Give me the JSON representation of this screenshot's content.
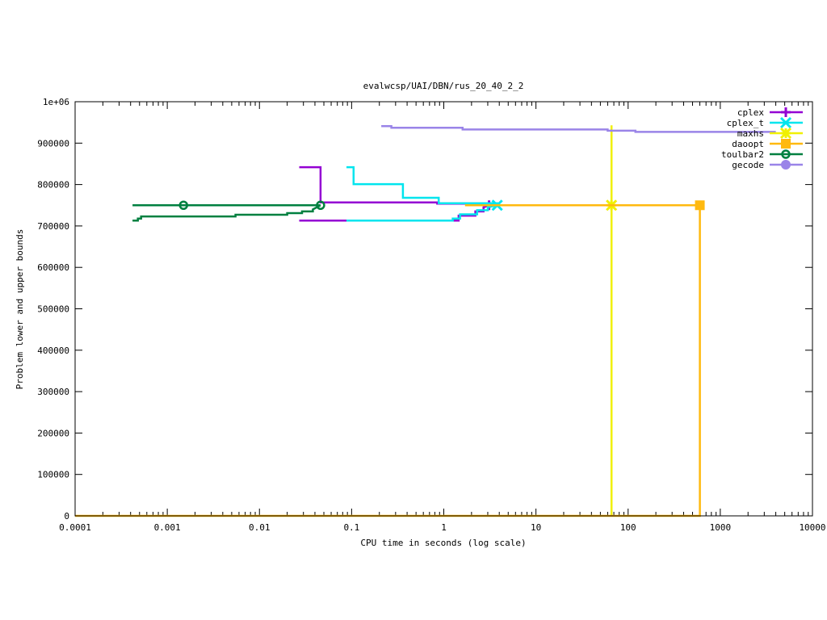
{
  "chart_data": {
    "type": "line",
    "title": "evalwcsp/UAI/DBN/rus_20_40_2_2",
    "xlabel": "CPU time in seconds (log scale)",
    "ylabel": "Problem lower and upper bounds",
    "xscale": "log",
    "xlim": [
      0.0001,
      10000
    ],
    "ylim": [
      0,
      1000000
    ],
    "x_ticks": [
      0.0001,
      0.001,
      0.01,
      0.1,
      1,
      10,
      100,
      1000,
      10000
    ],
    "x_tick_labels": [
      "0.0001",
      "0.001",
      "0.01",
      "0.1",
      "1",
      "10",
      "100",
      "1000",
      "10000"
    ],
    "y_ticks": [
      0,
      100000,
      200000,
      300000,
      400000,
      500000,
      600000,
      700000,
      800000,
      900000,
      1000000
    ],
    "y_tick_labels": [
      "0",
      "100000",
      "200000",
      "300000",
      "400000",
      "500000",
      "600000",
      "700000",
      "800000",
      "900000",
      "1e+06"
    ],
    "grid": false,
    "legend_position": "top-right",
    "series": [
      {
        "name": "cplex",
        "color": "#9400d3",
        "marker": "plus",
        "lines": [
          [
            [
              0.027,
              842000
            ],
            [
              0.046,
              842000
            ],
            [
              0.046,
              757000
            ],
            [
              0.85,
              757000
            ],
            [
              0.85,
              754000
            ],
            [
              2.6,
              754000
            ],
            [
              2.6,
              750000
            ],
            [
              3.1,
              750000
            ]
          ],
          [
            [
              0.027,
              713000
            ],
            [
              0.085,
              713000
            ],
            [
              0.085,
              713000
            ],
            [
              1.45,
              713000
            ],
            [
              1.45,
              725000
            ],
            [
              2.2,
              725000
            ],
            [
              2.2,
              735000
            ],
            [
              2.7,
              735000
            ],
            [
              2.7,
              745000
            ],
            [
              3.1,
              750000
            ]
          ]
        ],
        "markers": [
          [
            3.1,
            750000
          ]
        ]
      },
      {
        "name": "cplex_t",
        "color": "#00e5ee",
        "marker": "x",
        "lines": [
          [
            [
              0.088,
              842000
            ],
            [
              0.105,
              842000
            ],
            [
              0.105,
              801000
            ],
            [
              0.36,
              801000
            ],
            [
              0.36,
              768000
            ],
            [
              0.88,
              768000
            ],
            [
              0.88,
              755000
            ],
            [
              3.8,
              755000
            ],
            [
              3.8,
              750000
            ]
          ],
          [
            [
              0.088,
              713000
            ],
            [
              1.25,
              713000
            ],
            [
              1.25,
              718000
            ],
            [
              1.5,
              718000
            ],
            [
              1.5,
              728000
            ],
            [
              2.3,
              728000
            ],
            [
              2.3,
              738000
            ],
            [
              3.0,
              738000
            ],
            [
              3.0,
              745000
            ],
            [
              3.8,
              750000
            ]
          ]
        ],
        "markers": [
          [
            3.8,
            750000
          ]
        ]
      },
      {
        "name": "maxhs",
        "color": "#f0f000",
        "marker": "star",
        "lines": [
          [
            [
              66,
              943000
            ],
            [
              66,
              750000
            ]
          ],
          [
            [
              66,
              750000
            ],
            [
              66,
              0
            ]
          ]
        ],
        "markers": [
          [
            66,
            750000
          ]
        ]
      },
      {
        "name": "daoopt",
        "color": "#ffb90f",
        "marker": "square",
        "lines": [
          [
            [
              1.7,
              750000
            ],
            [
              600,
              750000
            ]
          ],
          [
            [
              0.0001,
              0
            ],
            [
              600,
              0
            ],
            [
              600,
              750000
            ]
          ]
        ],
        "markers": [
          [
            600,
            750000
          ]
        ]
      },
      {
        "name": "toulbar2",
        "color": "#008040",
        "marker": "circle",
        "lines": [
          [
            [
              0.00042,
              750000
            ],
            [
              0.046,
              750000
            ]
          ],
          [
            [
              0.00042,
              713000
            ],
            [
              0.00048,
              713000
            ],
            [
              0.00048,
              718000
            ],
            [
              0.00052,
              718000
            ],
            [
              0.00052,
              723000
            ],
            [
              0.0055,
              723000
            ],
            [
              0.0055,
              727000
            ],
            [
              0.02,
              727000
            ],
            [
              0.02,
              731000
            ],
            [
              0.029,
              731000
            ],
            [
              0.029,
              735000
            ],
            [
              0.038,
              735000
            ],
            [
              0.038,
              740000
            ],
            [
              0.046,
              750000
            ]
          ]
        ],
        "markers": [
          [
            0.0015,
            750000
          ],
          [
            0.046,
            750000
          ]
        ]
      },
      {
        "name": "gecode",
        "color": "#9a84e8",
        "marker": "filled-circle",
        "lines": [
          [
            [
              0.21,
              941000
            ],
            [
              0.27,
              941000
            ],
            [
              0.27,
              937000
            ],
            [
              1.6,
              937000
            ],
            [
              1.6,
              933000
            ],
            [
              60,
              933000
            ],
            [
              60,
              930000
            ],
            [
              120,
              930000
            ],
            [
              120,
              927000
            ],
            [
              4000,
              927000
            ]
          ]
        ],
        "markers": []
      }
    ]
  }
}
